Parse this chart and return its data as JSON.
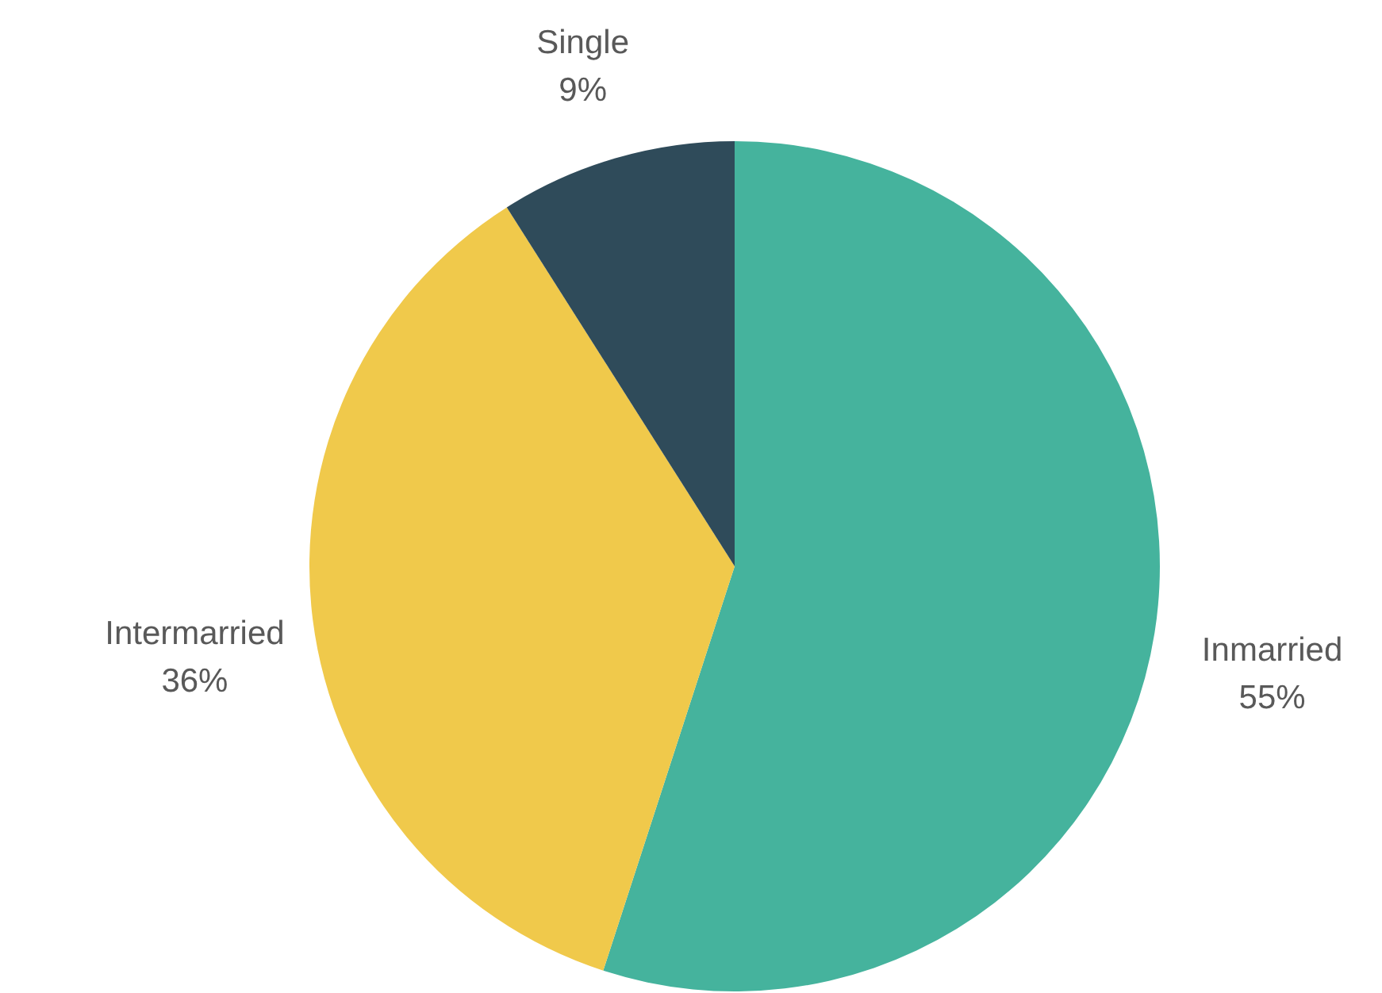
{
  "chart_data": {
    "type": "pie",
    "categories": [
      "Inmarried",
      "Intermarried",
      "Single"
    ],
    "values": [
      55,
      36,
      9
    ],
    "value_labels": [
      "55%",
      "36%",
      "9%"
    ],
    "colors": [
      "#45b39d",
      "#f0c94b",
      "#2f4b5a"
    ]
  }
}
